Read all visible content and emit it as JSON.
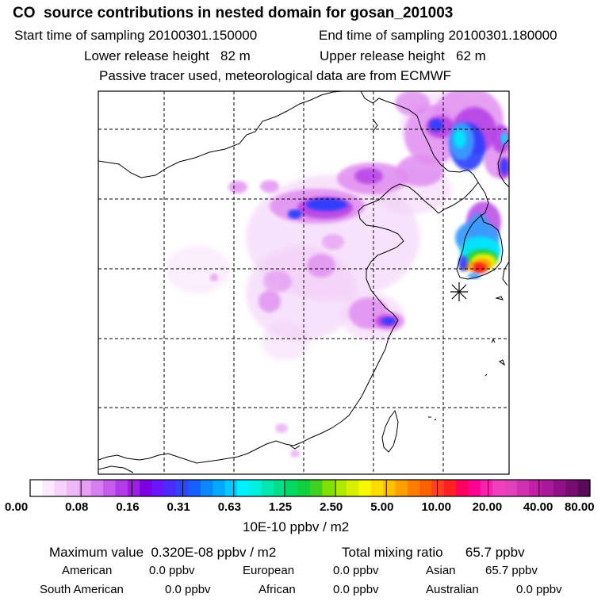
{
  "header": {
    "title": "CO  source contributions in nested domain for gosan_201003",
    "start_time": "Start time of sampling 20100301.150000",
    "end_time": "End time of sampling 20100301.180000",
    "lower_height": "Lower release height   82 m",
    "upper_height": "Upper release height   62 m",
    "tracer_note": "Passive tracer used, meteorological data are from ECMWF"
  },
  "map": {
    "receptor_marker": "asterisk-icon",
    "plume_colors": {
      "pale": "#f2ccf8",
      "light": "#e08cf0",
      "violet": "#b43ce6",
      "blue": "#2a3cff",
      "cyan": "#00e6ff",
      "skyblue": "#3a9bff",
      "green": "#28d23c",
      "yellow": "#f5f000",
      "orange": "#ffa000",
      "red": "#ff1e1e"
    }
  },
  "colorbar": {
    "colors": [
      "#ffffff",
      "#fbe9fd",
      "#f6d2fa",
      "#efb9f6",
      "#e59ef2",
      "#d67ff0",
      "#c45cec",
      "#b23ce8",
      "#9a1ee4",
      "#7d00e2",
      "#6a14ff",
      "#4a2cff",
      "#2c46ff",
      "#1660ff",
      "#0a86ff",
      "#00a8ff",
      "#00caff",
      "#00f0ff",
      "#00f0e0",
      "#00e8b0",
      "#00e088",
      "#00d860",
      "#10d040",
      "#40d020",
      "#80e000",
      "#b0e800",
      "#d8f000",
      "#f8f800",
      "#fcdc00",
      "#ffc000",
      "#ffa000",
      "#ff8000",
      "#ff6000",
      "#ff4020",
      "#ff2020",
      "#ff0060",
      "#ff0090",
      "#ff20b0",
      "#f040c0",
      "#e040b8",
      "#d030b0",
      "#c020a8",
      "#a81898",
      "#901088",
      "#780c70",
      "#5a0a58"
    ],
    "tick_labels": [
      "0.00",
      "0.08",
      "0.16",
      "0.31",
      "0.63",
      "1.25",
      "2.50",
      "5.00",
      "10.00",
      "20.00",
      "40.00",
      "80.00"
    ],
    "unit": "10E-10 ppbv / m2"
  },
  "footer": {
    "max_value": "Maximum value  0.320E-08 ppbv / m2",
    "total_mixing": "Total mixing ratio      65.7 ppbv",
    "regions": [
      {
        "name": "American",
        "value": "0.0 ppbv"
      },
      {
        "name": "European",
        "value": "0.0 ppbv"
      },
      {
        "name": "Asian",
        "value": "65.7 ppbv"
      },
      {
        "name": "South American",
        "value": "0.0 ppbv"
      },
      {
        "name": "African",
        "value": "0.0 ppbv"
      },
      {
        "name": "Australian",
        "value": "0.0 ppbv"
      }
    ]
  }
}
